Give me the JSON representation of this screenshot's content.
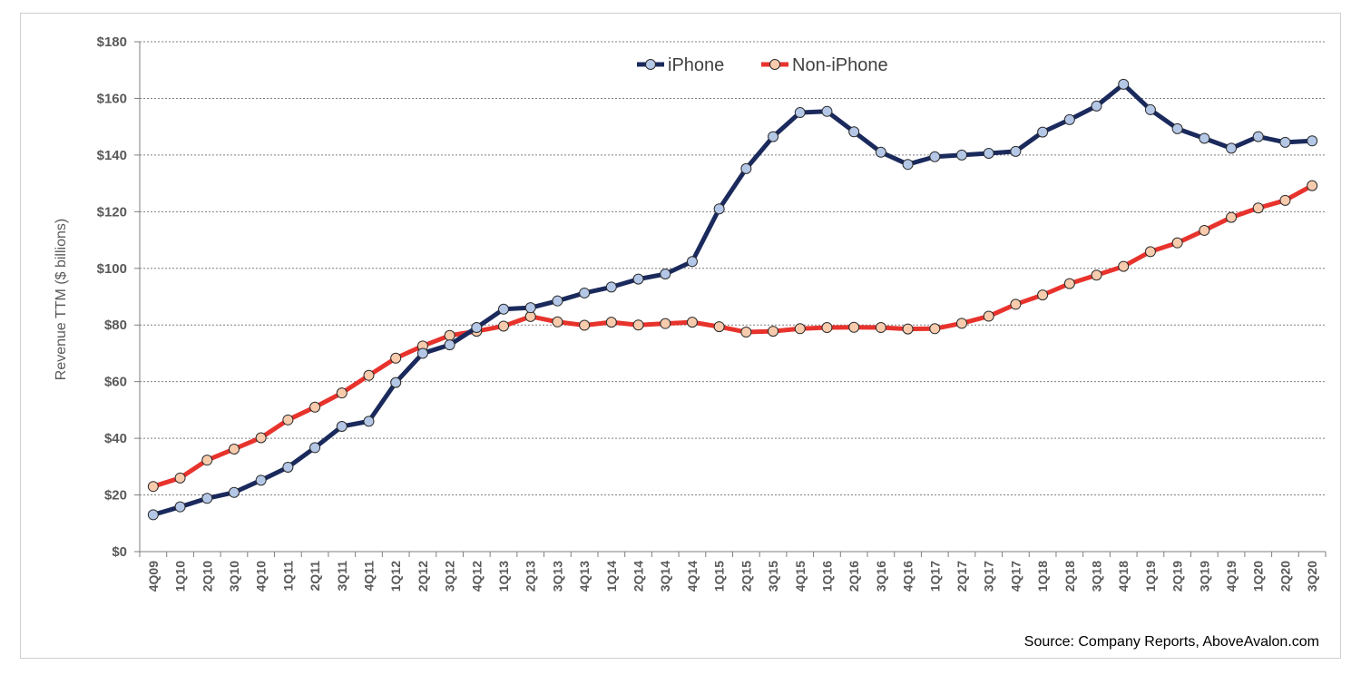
{
  "chart_data": {
    "type": "line",
    "title": "",
    "xlabel": "",
    "ylabel": "Revenue TTM ($ billions)",
    "ylim": [
      0,
      180
    ],
    "yticks": [
      "$0",
      "$20",
      "$40",
      "$60",
      "$80",
      "$100",
      "$120",
      "$140",
      "$160",
      "$180"
    ],
    "ytick_values": [
      0,
      20,
      40,
      60,
      80,
      100,
      120,
      140,
      160,
      180
    ],
    "grid": "horizontal-dotted",
    "legend_position": "top-center",
    "source": "Source: Company Reports, AboveAvalon.com",
    "categories": [
      "4Q09",
      "1Q10",
      "2Q10",
      "3Q10",
      "4Q10",
      "1Q11",
      "2Q11",
      "3Q11",
      "4Q11",
      "1Q12",
      "2Q12",
      "3Q12",
      "4Q12",
      "1Q13",
      "2Q13",
      "3Q13",
      "4Q13",
      "1Q14",
      "2Q14",
      "3Q14",
      "4Q14",
      "1Q15",
      "2Q15",
      "3Q15",
      "4Q15",
      "1Q16",
      "2Q16",
      "3Q16",
      "4Q16",
      "1Q17",
      "2Q17",
      "3Q17",
      "4Q17",
      "1Q18",
      "2Q18",
      "3Q18",
      "4Q18",
      "1Q19",
      "2Q19",
      "3Q19",
      "4Q19",
      "1Q20",
      "2Q20",
      "3Q20"
    ],
    "series": [
      {
        "name": "iPhone",
        "color": "#1b2a5c",
        "marker_fill": "#b4c7e7",
        "values": [
          13.0,
          15.8,
          18.8,
          20.9,
          25.2,
          29.8,
          36.7,
          44.2,
          46.0,
          59.7,
          70.0,
          73.0,
          79.1,
          85.6,
          86.1,
          88.5,
          91.3,
          93.4,
          96.2,
          98.0,
          102.4,
          121.0,
          135.2,
          146.5,
          155.0,
          155.4,
          148.2,
          141.0,
          136.7,
          139.4,
          140.0,
          140.6,
          141.3,
          148.1,
          152.5,
          157.3,
          165.0,
          156.0,
          149.3,
          145.9,
          142.4,
          146.5,
          144.5,
          145.0
        ]
      },
      {
        "name": "Non-iPhone",
        "color": "#e8332d",
        "marker_fill": "#f8cbad",
        "values": [
          23.0,
          26.0,
          32.3,
          36.2,
          40.2,
          46.5,
          51.0,
          56.0,
          62.2,
          68.3,
          72.6,
          76.3,
          77.8,
          79.6,
          83.0,
          81.1,
          79.9,
          81.0,
          80.0,
          80.5,
          81.0,
          79.4,
          77.5,
          77.8,
          78.7,
          79.1,
          79.2,
          79.1,
          78.6,
          78.7,
          80.6,
          83.1,
          87.3,
          90.6,
          94.6,
          97.6,
          100.7,
          105.9,
          109.0,
          113.4,
          118.0,
          121.3,
          124.0,
          129.2
        ]
      }
    ]
  }
}
